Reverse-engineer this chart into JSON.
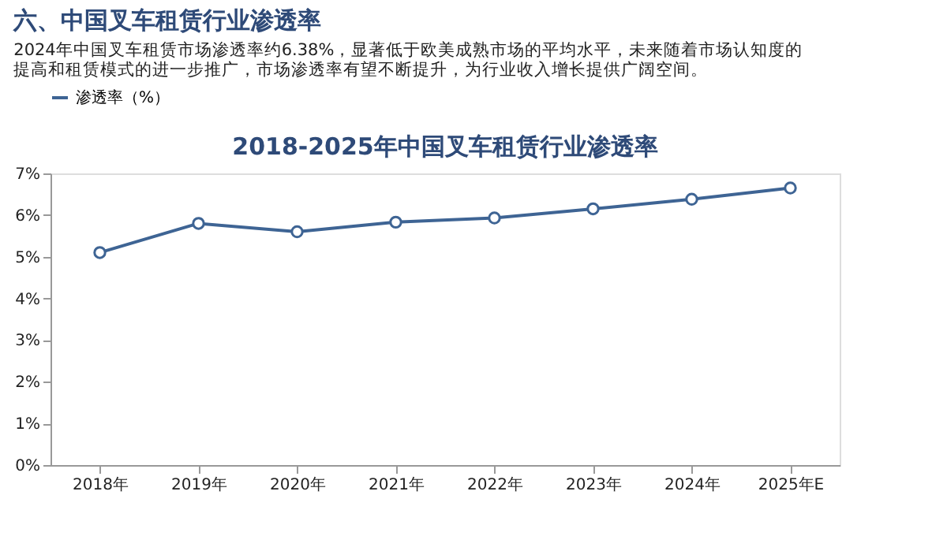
{
  "chart_data": {
    "type": "line",
    "title": "2018-2025年中国叉车租赁行业渗透率",
    "annotations": [
      "六、中国叉车租赁行业渗透率",
      "2024年中国叉车租赁市场渗透率约6.38%，显著低于欧美成熟市场的平均水平，未来随着市场认知度的提高和租赁模式的进一步推广，市场渗透率有望不断提升，为行业收入增长提供广阔空间。"
    ],
    "categories": [
      "2018年",
      "2019年",
      "2020年",
      "2021年",
      "2022年",
      "2023年",
      "2024年",
      "2025年E"
    ],
    "series": [
      {
        "name": "渗透率（%）",
        "color": "#3e6494",
        "values": [
          5.1,
          5.8,
          5.6,
          5.83,
          5.93,
          6.15,
          6.38,
          6.65
        ]
      }
    ],
    "ylim": [
      0,
      7
    ],
    "yticks": [
      {
        "value": 0,
        "label": "0%"
      },
      {
        "value": 1,
        "label": "1%"
      },
      {
        "value": 2,
        "label": "2%"
      },
      {
        "value": 3,
        "label": "3%"
      },
      {
        "value": 4,
        "label": "4%"
      },
      {
        "value": 5,
        "label": "5%"
      },
      {
        "value": 6,
        "label": "6%"
      },
      {
        "value": 7,
        "label": "7%"
      }
    ],
    "grid": false,
    "legend": "top",
    "marker": "circle",
    "line_style": "solid"
  }
}
